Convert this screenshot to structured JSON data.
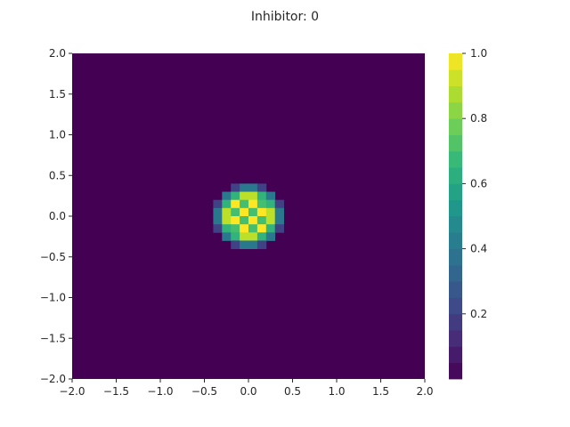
{
  "chart_data": {
    "type": "heatmap",
    "title": "Inhibitor: 0",
    "xlabel": "",
    "ylabel": "",
    "xlim": [
      -2.0,
      2.0
    ],
    "ylim": [
      -2.0,
      2.0
    ],
    "grid": false,
    "colormap": "viridis",
    "colorbar": {
      "range": [
        0.0,
        1.0
      ],
      "levels": 20,
      "tick_values": [
        0.2,
        0.4,
        0.6,
        0.8,
        1.0
      ],
      "tick_labels": [
        "0.2",
        "0.4",
        "0.6",
        "0.8",
        "1.0"
      ]
    },
    "x_ticks": {
      "values": [
        -2.0,
        -1.5,
        -1.0,
        -0.5,
        0.0,
        0.5,
        1.0,
        1.5,
        2.0
      ],
      "labels": [
        "−2.0",
        "−1.5",
        "−1.0",
        "−0.5",
        "0.0",
        "0.5",
        "1.0",
        "1.5",
        "2.0"
      ]
    },
    "y_ticks": {
      "values": [
        -2.0,
        -1.5,
        -1.0,
        -0.5,
        0.0,
        0.5,
        1.0,
        1.5,
        2.0
      ],
      "labels": [
        "−2.0",
        "−1.5",
        "−1.0",
        "−0.5",
        "0.0",
        "0.5",
        "1.0",
        "1.5",
        "2.0"
      ]
    },
    "field": {
      "grid_n": 40,
      "center": [
        0.0,
        0.0
      ],
      "blob_radius": 0.3,
      "edge_falloff": 0.12,
      "checker_radius": 0.24,
      "checker_low": 0.72,
      "checker_high": 1.0
    }
  },
  "colors": {
    "viridis_stops": [
      "#440154",
      "#482878",
      "#3e4989",
      "#31688e",
      "#26828e",
      "#1f9e89",
      "#35b779",
      "#6ece58",
      "#b5de2b",
      "#fde725"
    ],
    "axis": "#262626"
  }
}
